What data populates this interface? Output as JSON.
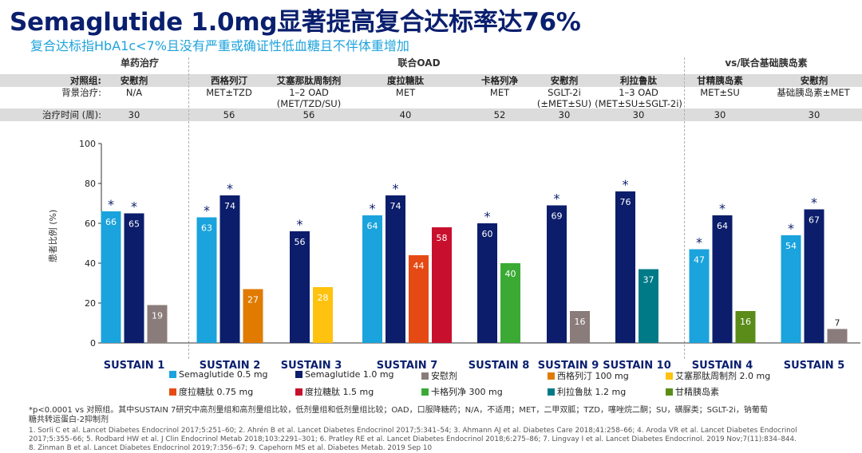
{
  "header": {
    "title": "Semaglutide 1.0mg显著提高复合达标率达76%",
    "subtitle": "复合达标指HbA1c<7%且没有严重或确证性低血糖且不伴体重增加"
  },
  "groups": [
    "单药治疗",
    "联合OAD",
    "vs/联合基础胰岛素"
  ],
  "table": {
    "row_labels": [
      "对照组:",
      "背景治疗:",
      "治疗时间 (周):"
    ],
    "comparators": [
      "安慰剂",
      "西格列汀",
      "艾塞那肽周制剂",
      "度拉糖肽",
      "卡格列净",
      "安慰剂",
      "利拉鲁肽",
      "甘精胰岛素",
      "安慰剂"
    ],
    "backgrounds": [
      [
        "N/A"
      ],
      [
        "MET±TZD"
      ],
      [
        "1–2 OAD",
        "(MET/TZD/SU)"
      ],
      [
        "MET"
      ],
      [
        "MET"
      ],
      [
        "SGLT-2i",
        "(±MET±SU)"
      ],
      [
        "1–3 OAD",
        "(MET±SU±SGLT-2i)"
      ],
      [
        "MET±SU"
      ],
      [
        "基础胰岛素±MET"
      ]
    ],
    "durations": [
      "30",
      "56",
      "56",
      "40",
      "52",
      "30",
      "30",
      "30",
      "30"
    ]
  },
  "chart_data": {
    "type": "bar",
    "ylabel": "患者比例 (%)",
    "ylim": [
      0,
      100
    ],
    "yticks": [
      0,
      20,
      40,
      60,
      80,
      100
    ],
    "categories": [
      "SUSTAIN 1",
      "SUSTAIN 2",
      "SUSTAIN 3",
      "SUSTAIN 7",
      "SUSTAIN 8",
      "SUSTAIN 9",
      "SUSTAIN 10",
      "SUSTAIN 4",
      "SUSTAIN 5"
    ],
    "series": [
      {
        "name": "Semaglutide 0.5 mg",
        "color": "#1aa3dc"
      },
      {
        "name": "Semaglutide 1.0 mg",
        "color": "#0b1d6b"
      },
      {
        "name": "安慰剂",
        "color": "#8a7c7a"
      },
      {
        "name": "西格列汀 100 mg",
        "color": "#e07b00"
      },
      {
        "name": "艾塞那肽周制剂 2.0 mg",
        "color": "#ffc20e"
      },
      {
        "name": "度拉糖肽 0.75 mg",
        "color": "#e64a14"
      },
      {
        "name": "度拉糖肽 1.5 mg",
        "color": "#c8102e"
      },
      {
        "name": "卡格列净 300 mg",
        "color": "#3aaa35"
      },
      {
        "name": "利拉鲁肽 1.2 mg",
        "color": "#007a87"
      },
      {
        "name": "甘精胰岛素",
        "color": "#5b8c1a"
      }
    ],
    "bars": [
      {
        "group": 0,
        "series": 0,
        "value": 66,
        "star": true
      },
      {
        "group": 0,
        "series": 1,
        "value": 65,
        "star": true
      },
      {
        "group": 0,
        "series": 2,
        "value": 19,
        "star": false
      },
      {
        "group": 1,
        "series": 0,
        "value": 63,
        "star": true
      },
      {
        "group": 1,
        "series": 1,
        "value": 74,
        "star": true
      },
      {
        "group": 1,
        "series": 3,
        "value": 27,
        "star": false
      },
      {
        "group": 2,
        "series": 1,
        "value": 56,
        "star": true
      },
      {
        "group": 2,
        "series": 4,
        "value": 28,
        "star": false
      },
      {
        "group": 3,
        "series": 0,
        "value": 64,
        "star": true
      },
      {
        "group": 3,
        "series": 1,
        "value": 74,
        "star": true
      },
      {
        "group": 3,
        "series": 5,
        "value": 44,
        "star": false
      },
      {
        "group": 3,
        "series": 6,
        "value": 58,
        "star": false
      },
      {
        "group": 4,
        "series": 1,
        "value": 60,
        "star": true
      },
      {
        "group": 4,
        "series": 7,
        "value": 40,
        "star": false
      },
      {
        "group": 5,
        "series": 1,
        "value": 69,
        "star": true
      },
      {
        "group": 5,
        "series": 2,
        "value": 16,
        "star": false
      },
      {
        "group": 6,
        "series": 1,
        "value": 76,
        "star": true
      },
      {
        "group": 6,
        "series": 8,
        "value": 37,
        "star": false
      },
      {
        "group": 7,
        "series": 0,
        "value": 47,
        "star": true
      },
      {
        "group": 7,
        "series": 1,
        "value": 64,
        "star": true
      },
      {
        "group": 7,
        "series": 9,
        "value": 16,
        "star": false
      },
      {
        "group": 8,
        "series": 0,
        "value": 54,
        "star": true
      },
      {
        "group": 8,
        "series": 1,
        "value": 67,
        "star": true
      },
      {
        "group": 8,
        "series": 2,
        "value": 7,
        "star": false
      }
    ],
    "star_symbol": "*"
  },
  "footnotes": {
    "note1": "*p<0.0001 vs 对照组。其中SUSTAIN 7研究中高剂量组和高剂量组比较，低剂量组和低剂量组比较；OAD，口服降糖药；N/A，不适用；MET，二甲双胍；TZD，噻唑烷二酮；SU，磺脲类；SGLT-2i，钠葡萄",
    "note2": "糖共转运蛋白-2抑制剂",
    "ref1": "1. Sorli C et al. Lancet Diabetes Endocrinol 2017;5:251–60; 2. Ahrén B et al. Lancet Diabetes Endocrinol 2017;5:341–54; 3. Ahmann AJ et al. Diabetes Care 2018;41:258–66; 4. Aroda VR et al. Lancet Diabetes Endocrinol",
    "ref2": "2017;5:355–66; 5. Rodbard HW et al. J Clin Endocrinol Metab 2018;103:2291–301; 6. Pratley RE et al. Lancet Diabetes Endocrinol 2018;6:275–86; 7. Lingvay I et al. Lancet Diabetes Endocrinol. 2019 Nov;7(11):834–844.",
    "ref3": "8. Zinman B et al. Lancet Diabetes Endocrinol 2019;7:356–67; 9. Capehorn MS et al. Diabetes Metab. 2019 Sep 10"
  }
}
